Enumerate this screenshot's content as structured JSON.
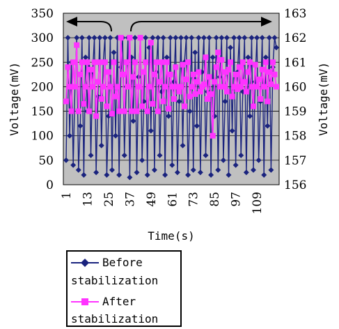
{
  "chart_data": {
    "type": "line",
    "xlabel": "Time(s)",
    "ylabel_left": "Voltage(mV)",
    "ylabel_right": "Voltage(mV)",
    "x_tick_labels": [
      "1",
      "13",
      "25",
      "37",
      "49",
      "61",
      "73",
      "85",
      "97",
      "109"
    ],
    "x_ticks": [
      1,
      13,
      25,
      37,
      49,
      61,
      73,
      85,
      97,
      109
    ],
    "xlim": [
      1,
      120
    ],
    "ylim_left": [
      0,
      350
    ],
    "ylim_right": [
      156,
      163
    ],
    "y_ticks_left": [
      0,
      50,
      100,
      150,
      200,
      250,
      300,
      350
    ],
    "y_ticks_right": [
      156,
      157,
      158,
      159,
      160,
      161,
      162,
      163
    ],
    "y_tick_labels_left": [
      "0",
      "50",
      "100",
      "150",
      "200",
      "250",
      "300",
      "350"
    ],
    "y_tick_labels_right": [
      "156",
      "157",
      "158",
      "159",
      "160",
      "161",
      "162",
      "163"
    ],
    "plot_background": "#c0c0c0",
    "grid": "horizontal",
    "legend_position": "bottom",
    "series": [
      {
        "name": "Before stabilization",
        "axis": "left",
        "color": "#1a237e",
        "marker": "diamond",
        "x": [
          1,
          2,
          3,
          4,
          5,
          6,
          7,
          8,
          9,
          10,
          11,
          12,
          13,
          14,
          15,
          16,
          17,
          18,
          19,
          20,
          21,
          22,
          23,
          24,
          25,
          26,
          27,
          28,
          29,
          30,
          31,
          32,
          33,
          34,
          35,
          36,
          37,
          38,
          39,
          40,
          41,
          42,
          43,
          44,
          45,
          46,
          47,
          48,
          49,
          50,
          51,
          52,
          53,
          54,
          55,
          56,
          57,
          58,
          59,
          60,
          61,
          62,
          63,
          64,
          65,
          66,
          67,
          68,
          69,
          70,
          71,
          72,
          73,
          74,
          75,
          76,
          77,
          78,
          79,
          80,
          81,
          82,
          83,
          84,
          85,
          86,
          87,
          88,
          89,
          90,
          91,
          92,
          93,
          94,
          95,
          96,
          97,
          98,
          99,
          100,
          101,
          102,
          103,
          104,
          105,
          106,
          107,
          108,
          109,
          110,
          111,
          112,
          113,
          114,
          115,
          116,
          117,
          118,
          119,
          120
        ],
        "y": [
          50,
          300,
          100,
          250,
          40,
          200,
          300,
          30,
          120,
          300,
          20,
          260,
          150,
          300,
          60,
          230,
          300,
          25,
          180,
          300,
          80,
          250,
          300,
          20,
          140,
          300,
          30,
          270,
          100,
          300,
          20,
          240,
          300,
          60,
          200,
          300,
          15,
          260,
          130,
          300,
          25,
          220,
          300,
          50,
          170,
          300,
          20,
          280,
          110,
          300,
          30,
          230,
          300,
          60,
          190,
          300,
          20,
          260,
          140,
          300,
          40,
          210,
          300,
          25,
          170,
          300,
          80,
          250,
          300,
          20,
          150,
          300,
          30,
          270,
          120,
          300,
          25,
          230,
          300,
          60,
          190,
          300,
          20,
          260,
          140,
          300,
          30,
          220,
          300,
          50,
          170,
          300,
          20,
          280,
          110,
          300,
          40,
          230,
          300,
          60,
          190,
          300,
          25,
          260,
          140,
          300,
          30,
          210,
          300,
          50,
          170,
          300,
          20,
          260,
          120,
          300,
          30,
          240,
          300,
          280
        ]
      },
      {
        "name": "After stabilization",
        "axis": "right",
        "color": "#ff33ff",
        "marker": "square",
        "x": [
          1,
          2,
          3,
          4,
          5,
          6,
          7,
          8,
          9,
          10,
          11,
          12,
          13,
          14,
          15,
          16,
          17,
          18,
          19,
          20,
          21,
          22,
          23,
          24,
          25,
          26,
          27,
          28,
          29,
          30,
          31,
          32,
          33,
          34,
          35,
          36,
          37,
          38,
          39,
          40,
          41,
          42,
          43,
          44,
          45,
          46,
          47,
          48,
          49,
          50,
          51,
          52,
          53,
          54,
          55,
          56,
          57,
          58,
          59,
          60,
          61,
          62,
          63,
          64,
          65,
          66,
          67,
          68,
          69,
          70,
          71,
          72,
          73,
          74,
          75,
          76,
          77,
          78,
          79,
          80,
          81,
          82,
          83,
          84,
          85,
          86,
          87,
          88,
          89,
          90,
          91,
          92,
          93,
          94,
          95,
          96,
          97,
          98,
          99,
          100,
          101,
          102,
          103,
          104,
          105,
          106,
          107,
          108,
          109,
          110,
          111,
          112,
          113,
          114,
          115,
          116,
          117,
          118,
          119,
          120
        ],
        "y": [
          159.4,
          160.8,
          160,
          159,
          161,
          160,
          161.7,
          159,
          160.5,
          161,
          159.3,
          160,
          161,
          159,
          160.7,
          160,
          161,
          158.8,
          160.2,
          161,
          159.5,
          160,
          161,
          159.2,
          160.6,
          160,
          158.9,
          161,
          159.6,
          160,
          159,
          162,
          160.5,
          159,
          161,
          160,
          162,
          159,
          160.4,
          161,
          159,
          160,
          162,
          159.2,
          160.6,
          161,
          159,
          160,
          161.8,
          159.3,
          160.5,
          161,
          159,
          160.2,
          161,
          159.4,
          160,
          161,
          159.1,
          160.5,
          160,
          159.5,
          160.8,
          160,
          159.8,
          160,
          160.9,
          159.2,
          160.3,
          161,
          159.6,
          160,
          160.5,
          159.7,
          160.2,
          160.6,
          159.8,
          160,
          160.1,
          161.2,
          159.5,
          160.4,
          159.7,
          158,
          160.2,
          160.8,
          161.4,
          160,
          161.1,
          160,
          160.6,
          159.8,
          160.7,
          161,
          159.6,
          160,
          160.5,
          159.9,
          160.8,
          160,
          161,
          160.2,
          159.8,
          160.6,
          161,
          160,
          159.2,
          160.9,
          160,
          160.3,
          159.5,
          160.7,
          160,
          161,
          159.4,
          160.6,
          160.1,
          161,
          160.5,
          160
        ]
      }
    ]
  },
  "legend": {
    "items": [
      {
        "line1": "Before",
        "line2": "stabilization",
        "color": "#1a237e",
        "marker": "diamond"
      },
      {
        "line1": "After",
        "line2": "stabilization",
        "color": "#ff33ff",
        "marker": "square"
      }
    ]
  }
}
